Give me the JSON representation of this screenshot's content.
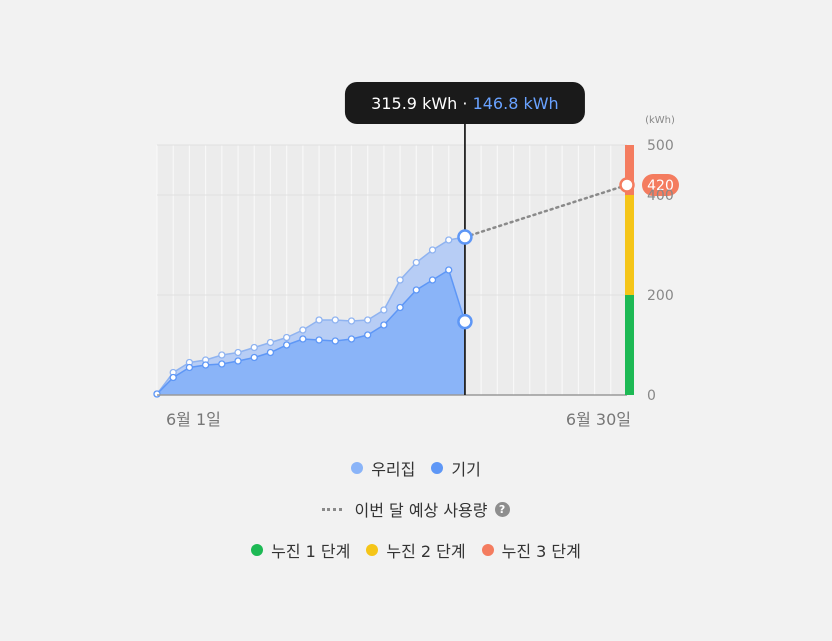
{
  "chart_data": {
    "type": "area",
    "unit_label": "(kWh)",
    "x_range": [
      1,
      30
    ],
    "x_tick_labels": [
      "6월 1일",
      "6월 30일"
    ],
    "ylim": [
      0,
      500
    ],
    "y_ticks": [
      0,
      200,
      400,
      500
    ],
    "series": [
      {
        "name": "우리집",
        "color": "#b7cdf5",
        "line_color": "#8fb3f0",
        "x": [
          1,
          2,
          3,
          4,
          5,
          6,
          7,
          8,
          9,
          10,
          11,
          12,
          13,
          14,
          15,
          16,
          17,
          18,
          19,
          20
        ],
        "values": [
          2,
          45,
          65,
          70,
          80,
          85,
          95,
          105,
          115,
          130,
          150,
          150,
          148,
          150,
          170,
          230,
          265,
          290,
          310,
          315.9
        ]
      },
      {
        "name": "기기",
        "color": "#8ab4f8",
        "line_color": "#5e97f6",
        "x": [
          1,
          2,
          3,
          4,
          5,
          6,
          7,
          8,
          9,
          10,
          11,
          12,
          13,
          14,
          15,
          16,
          17,
          18,
          19,
          20
        ],
        "values": [
          2,
          35,
          55,
          60,
          62,
          68,
          75,
          85,
          100,
          112,
          110,
          108,
          112,
          120,
          140,
          175,
          210,
          230,
          250,
          146.8
        ]
      }
    ],
    "forecast": {
      "name": "이번 달 예상 사용량",
      "from_x": 20,
      "from_value": 315.9,
      "to_x": 30,
      "to_value": 420,
      "value_label": "420",
      "color": "#8a8a8a"
    },
    "tooltip": {
      "x": 20,
      "home_text": "315.9 kWh",
      "separator": "·",
      "device_text": "146.8 kWh",
      "home_color": "#ffffff",
      "device_color": "#69a2ff"
    },
    "tiers": [
      {
        "name": "누진 1 단계",
        "from": 0,
        "to": 200,
        "color": "#1db954"
      },
      {
        "name": "누진 2 단계",
        "from": 200,
        "to": 400,
        "color": "#f5c518"
      },
      {
        "name": "누진 3 단계",
        "from": 400,
        "to": 500,
        "color": "#f47c5f"
      }
    ]
  },
  "legend": {
    "home_label": "우리집",
    "device_label": "기기",
    "forecast_label": "이번 달 예상 사용량",
    "help_icon": "?",
    "tier1_label": "누진 1 단계",
    "tier2_label": "누진 2 단계",
    "tier3_label": "누진 3 단계",
    "home_color": "#8ab4f8",
    "device_color": "#5e97f6",
    "tier1_color": "#1db954",
    "tier2_color": "#f5c518",
    "tier3_color": "#f47c5f"
  }
}
